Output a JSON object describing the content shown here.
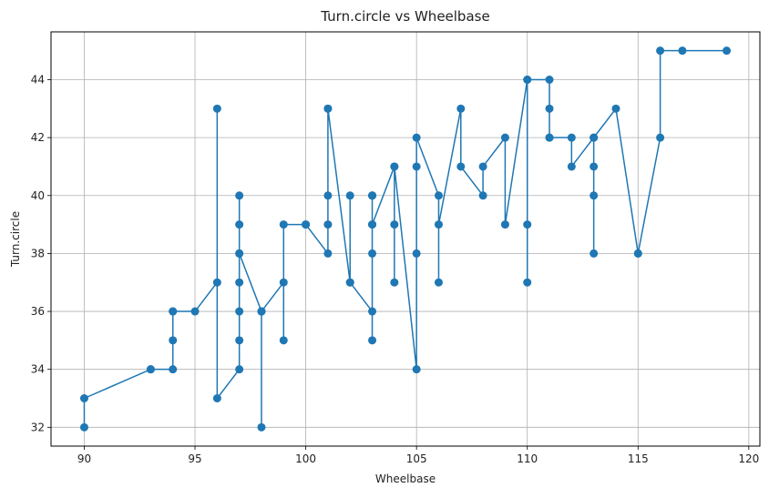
{
  "chart_data": {
    "type": "line",
    "title": "Turn.circle vs Wheelbase",
    "xlabel": "Wheelbase",
    "ylabel": "Turn.circle",
    "xlim": [
      88.5,
      120.5
    ],
    "ylim": [
      31.35,
      45.65
    ],
    "xticks": [
      90,
      95,
      100,
      105,
      110,
      115,
      120
    ],
    "yticks": [
      32,
      34,
      36,
      38,
      40,
      42,
      44
    ],
    "grid": true,
    "marker": "circle",
    "series": [
      {
        "color": "#1f77b4",
        "x": [
          90,
          90,
          93,
          93,
          94,
          94,
          94,
          94,
          95,
          96,
          96,
          96,
          97,
          97,
          97,
          97,
          97,
          97,
          97,
          97,
          98,
          98,
          98,
          98,
          99,
          99,
          99,
          100,
          100,
          101,
          101,
          101,
          101,
          101,
          102,
          102,
          102,
          103,
          103,
          103,
          103,
          103,
          103,
          103,
          103,
          104,
          104,
          104,
          104,
          105,
          105,
          105,
          105,
          106,
          106,
          106,
          107,
          107,
          108,
          108,
          109,
          109,
          110,
          110,
          110,
          110,
          111,
          111,
          111,
          111,
          112,
          112,
          113,
          113,
          113,
          113,
          113,
          114,
          115,
          115,
          116,
          116,
          117,
          119
        ],
        "y": [
          32,
          33,
          34,
          34,
          34,
          35,
          36,
          36,
          36,
          37,
          43,
          33,
          34,
          35,
          36,
          37,
          38,
          39,
          40,
          38,
          36,
          32,
          36,
          36,
          37,
          35,
          39,
          39,
          39,
          38,
          39,
          40,
          43,
          43,
          37,
          40,
          37,
          36,
          35,
          38,
          39,
          40,
          40,
          40,
          39,
          41,
          37,
          39,
          41,
          34,
          38,
          41,
          42,
          40,
          37,
          39,
          43,
          41,
          40,
          41,
          42,
          39,
          44,
          39,
          37,
          44,
          44,
          42,
          43,
          42,
          42,
          41,
          42,
          41,
          40,
          38,
          42,
          43,
          38,
          38,
          42,
          45,
          45,
          45
        ]
      }
    ]
  }
}
